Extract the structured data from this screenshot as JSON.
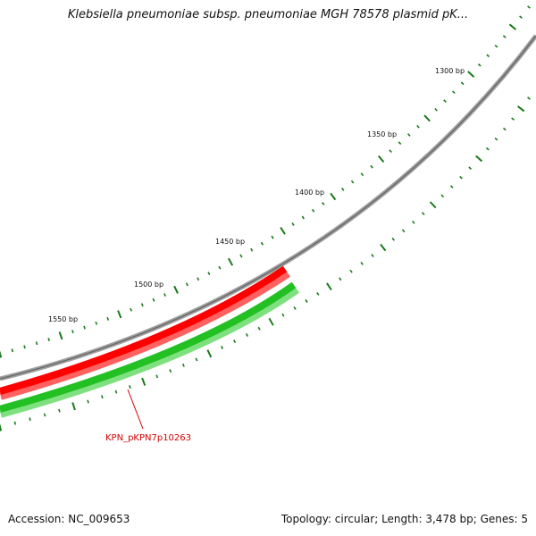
{
  "map": {
    "title": "Klebsiella pneumoniae subsp. pneumoniae MGH 78578 plasmid pK...",
    "accession_text": "Accession: NC_009653",
    "summary_text": "Topology: circular; Length: 3,478 bp; Genes: 5",
    "tick_labels": [
      "1300 bp",
      "1350 bp",
      "1400 bp",
      "1450 bp",
      "1500 bp",
      "1550 bp"
    ],
    "gene_label": "KPN_pKPN7p10263",
    "colors": {
      "backbone": "#7a7a7a",
      "forward_feature": "#ff0000",
      "reverse_feature": "#2ecc2e",
      "tick": "#1a7a1a",
      "gene_label": "#d40000"
    }
  }
}
